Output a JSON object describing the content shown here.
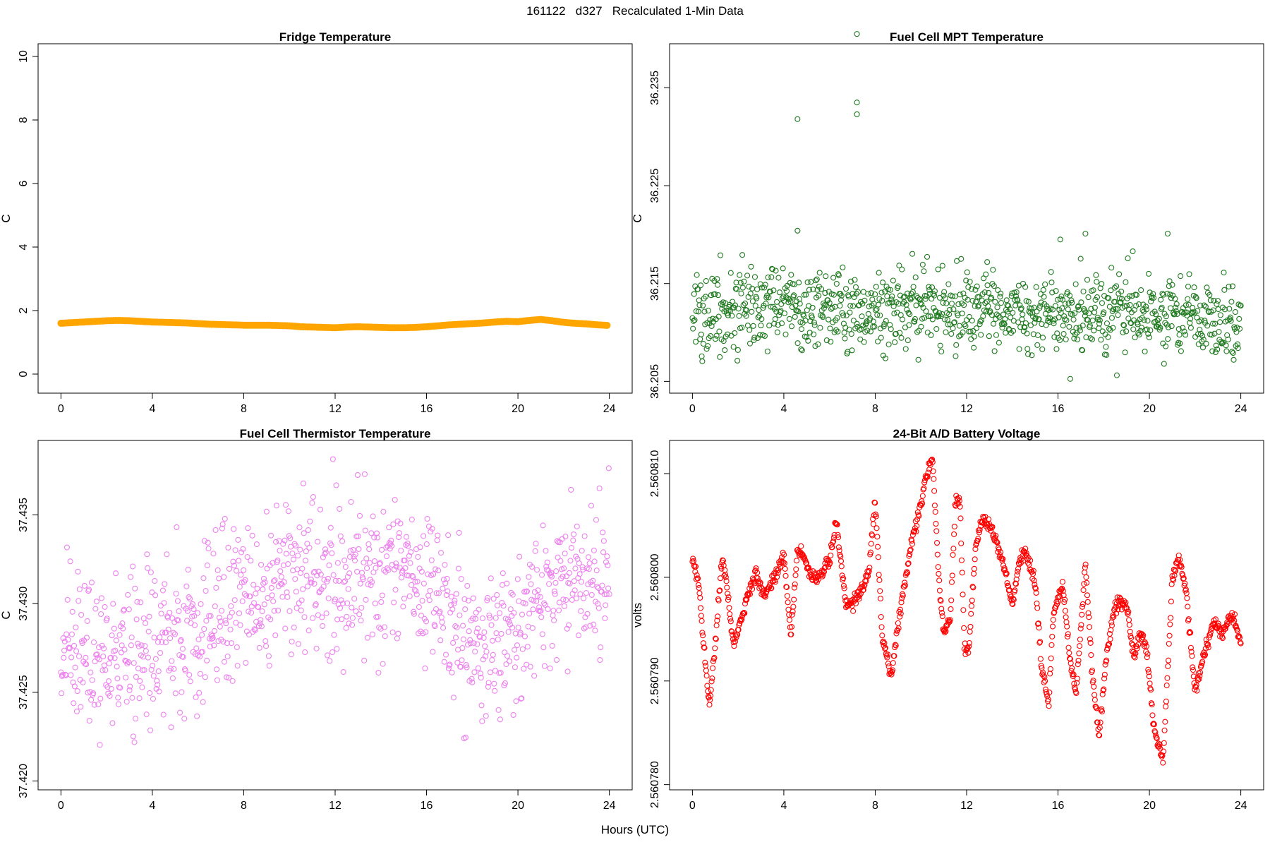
{
  "figure": {
    "title": "161122   d327   Recalculated 1-Min Data",
    "x_caption": "Hours (UTC)"
  },
  "chart_data": [
    {
      "type": "line",
      "title": "Fridge Temperature",
      "xlabel": "",
      "ylabel": "C",
      "xlim": [
        -1,
        25
      ],
      "ylim": [
        -0.6,
        10.4
      ],
      "xticks": [
        0,
        4,
        8,
        12,
        16,
        20,
        24
      ],
      "yticks": [
        0,
        2,
        4,
        6,
        8,
        10
      ],
      "ytick_labels": [
        "0",
        "2",
        "4",
        "6",
        "8",
        "10"
      ],
      "color": "#FFA500",
      "series": [
        {
          "name": "Fridge Temperature",
          "x": [
            0,
            0.5,
            1,
            1.5,
            2,
            2.5,
            3,
            3.5,
            4,
            4.5,
            5,
            5.5,
            6,
            6.5,
            7,
            7.5,
            8,
            8.5,
            9,
            9.5,
            10,
            10.5,
            11,
            11.5,
            12,
            12.5,
            13,
            13.5,
            14,
            14.5,
            15,
            15.5,
            16,
            16.5,
            17,
            17.5,
            18,
            18.5,
            19,
            19.5,
            20,
            20.5,
            21,
            21.5,
            22,
            22.5,
            23,
            23.5,
            24
          ],
          "values": [
            1.6,
            1.62,
            1.64,
            1.66,
            1.68,
            1.69,
            1.68,
            1.66,
            1.64,
            1.63,
            1.62,
            1.61,
            1.59,
            1.57,
            1.56,
            1.55,
            1.54,
            1.54,
            1.54,
            1.53,
            1.52,
            1.49,
            1.48,
            1.47,
            1.46,
            1.48,
            1.49,
            1.48,
            1.47,
            1.46,
            1.46,
            1.47,
            1.49,
            1.52,
            1.55,
            1.57,
            1.59,
            1.61,
            1.64,
            1.66,
            1.65,
            1.69,
            1.72,
            1.68,
            1.63,
            1.6,
            1.58,
            1.55,
            1.53
          ]
        }
      ]
    },
    {
      "type": "scatter",
      "title": "Fuel Cell MPT Temperature",
      "xlabel": "",
      "ylabel": "C",
      "xlim": [
        -1,
        25
      ],
      "ylim": [
        36.2038,
        36.2395
      ],
      "xticks": [
        0,
        4,
        8,
        12,
        16,
        20,
        24
      ],
      "yticks": [
        36.205,
        36.215,
        36.225,
        36.235
      ],
      "ytick_labels": [
        "36.205",
        "36.215",
        "36.225",
        "36.235"
      ],
      "color": "#1F7A1F",
      "noise_sd": 0.002,
      "series": [
        {
          "name": "Fuel Cell MPT Temperature",
          "x": [
            0,
            2,
            4,
            6,
            8,
            10,
            12,
            14,
            16,
            18,
            20,
            22,
            24
          ],
          "values": [
            36.212,
            36.2122,
            36.2126,
            36.2124,
            36.2122,
            36.2126,
            36.2124,
            36.2122,
            36.2118,
            36.212,
            36.2118,
            36.2114,
            36.2112
          ]
        },
        {
          "name": "outliers",
          "x": [
            4.6,
            4.6,
            7.2,
            7.2,
            7.2,
            12.9,
            16.1,
            17.2,
            20.8
          ],
          "values": [
            36.2318,
            36.2204,
            36.2405,
            36.2335,
            36.2323,
            36.2172,
            36.2195,
            36.2201,
            36.2201
          ]
        }
      ]
    },
    {
      "type": "scatter",
      "title": "Fuel Cell Thermistor Temperature",
      "xlabel": "",
      "ylabel": "C",
      "xlim": [
        -1,
        25
      ],
      "ylim": [
        37.4195,
        37.4392
      ],
      "xticks": [
        0,
        4,
        8,
        12,
        16,
        20,
        24
      ],
      "yticks": [
        37.42,
        37.425,
        37.43,
        37.435
      ],
      "ytick_labels": [
        "37.420",
        "37.425",
        "37.430",
        "37.435"
      ],
      "color": "#EE82EE",
      "noise_sd": 0.0021,
      "series": [
        {
          "name": "Fuel Cell Thermistor Temperature",
          "x": [
            0,
            2,
            4,
            6,
            8,
            10,
            12,
            14,
            16,
            18,
            20,
            22,
            24
          ],
          "values": [
            37.4275,
            37.4265,
            37.4272,
            37.4288,
            37.4303,
            37.4312,
            37.4318,
            37.4322,
            37.4312,
            37.4278,
            37.4285,
            37.4312,
            37.4315
          ]
        }
      ]
    },
    {
      "type": "scatter",
      "title": "24-Bit A/D Battery Voltage",
      "xlabel": "",
      "ylabel": "volts",
      "xlim": [
        -1,
        25
      ],
      "ylim": [
        2.5607795,
        2.5608132
      ],
      "xticks": [
        0,
        4,
        8,
        12,
        16,
        20,
        24
      ],
      "yticks": [
        2.56078,
        2.56079,
        2.5608,
        2.56081
      ],
      "ytick_labels": [
        "2.560780",
        "2.560790",
        "2.560800",
        "2.560810"
      ],
      "color": "#FF0000",
      "noise_sd": 3e-07,
      "series": [
        {
          "name": "24-Bit A/D Battery Voltage",
          "x": [
            0,
            0.25,
            0.5,
            0.75,
            1,
            1.3,
            1.5,
            1.8,
            2.3,
            2.8,
            3.1,
            3.6,
            4,
            4.3,
            4.6,
            4.8,
            5.2,
            5.6,
            6,
            6.3,
            6.7,
            7,
            7.3,
            7.7,
            8,
            8.3,
            8.7,
            9,
            9.6,
            10,
            10.2,
            10.5,
            10.8,
            11,
            11.3,
            11.5,
            11.7,
            11.9,
            12.1,
            12.4,
            12.7,
            13,
            13.3,
            13.7,
            14,
            14.3,
            14.6,
            15,
            15.3,
            15.6,
            15.8,
            16.2,
            16.5,
            16.8,
            17.2,
            17.5,
            17.8,
            18.1,
            18.5,
            19,
            19.3,
            19.7,
            19.9,
            20.2,
            20.6,
            21,
            21.3,
            21.6,
            22,
            22.4,
            22.8,
            23.2,
            23.6,
            24
          ],
          "values": [
            2.5608017,
            2.5608,
            2.5607935,
            2.5607875,
            2.5607935,
            2.560802,
            2.5607993,
            2.5607932,
            2.5607975,
            2.5608005,
            2.5607983,
            2.5608,
            2.560802,
            2.5607945,
            2.5608025,
            2.5608022,
            2.5608,
            2.5608,
            2.5608017,
            2.5608055,
            2.5607975,
            2.5607975,
            2.5607985,
            2.5608,
            2.5608075,
            2.5607945,
            2.5607905,
            2.5607955,
            2.5608035,
            2.560807,
            2.5608095,
            2.5608115,
            2.5607995,
            2.5607945,
            2.5607965,
            2.560807,
            2.5608078,
            2.5607935,
            2.560793,
            2.560803,
            2.5608055,
            2.5608052,
            2.5608035,
            2.5608005,
            2.5607972,
            2.5608015,
            2.5608025,
            2.5607995,
            2.5607908,
            2.560788,
            2.5607965,
            2.5607995,
            2.5607925,
            2.5607888,
            2.5608015,
            2.5607905,
            2.5607845,
            2.560792,
            2.5607975,
            2.5607975,
            2.5607925,
            2.5607948,
            2.5607925,
            2.5607855,
            2.5607825,
            2.5607998,
            2.560802,
            2.5607988,
            2.560789,
            2.5607925,
            2.5607955,
            2.5607945,
            2.5607965,
            2.560794
          ]
        }
      ]
    }
  ]
}
